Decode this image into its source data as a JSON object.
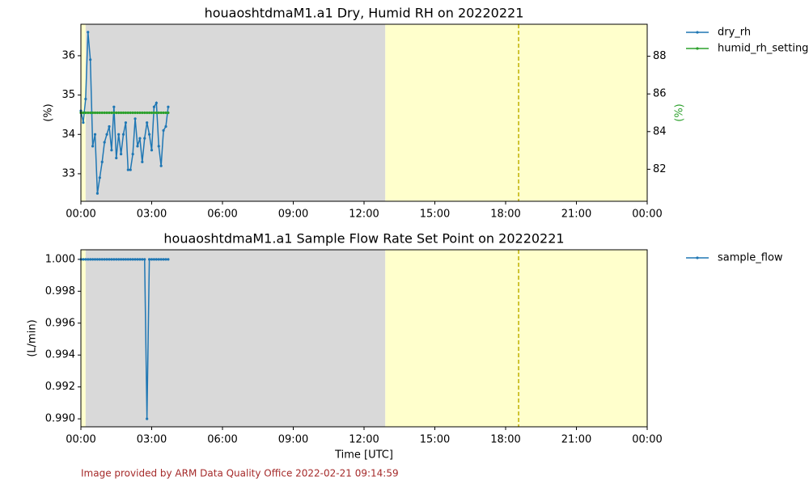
{
  "chart_data": [
    {
      "type": "line",
      "title": "houaoshtdmaM1.a1 Dry, Humid RH on 20220221",
      "x": [
        0,
        0.1,
        0.2,
        0.3,
        0.4,
        0.5,
        0.6,
        0.7,
        0.8,
        0.9,
        1.0,
        1.1,
        1.2,
        1.3,
        1.4,
        1.5,
        1.6,
        1.7,
        1.8,
        1.9,
        2.0,
        2.1,
        2.2,
        2.3,
        2.4,
        2.5,
        2.6,
        2.7,
        2.8,
        2.9,
        3.0,
        3.1,
        3.2,
        3.3,
        3.4,
        3.5,
        3.6,
        3.7
      ],
      "xlim": [
        0,
        24
      ],
      "xticks": [
        {
          "value": 0,
          "label": "00:00"
        },
        {
          "value": 3,
          "label": "03:00"
        },
        {
          "value": 6,
          "label": "06:00"
        },
        {
          "value": 9,
          "label": "09:00"
        },
        {
          "value": 12,
          "label": "12:00"
        },
        {
          "value": 15,
          "label": "15:00"
        },
        {
          "value": 18,
          "label": "18:00"
        },
        {
          "value": 21,
          "label": "21:00"
        },
        {
          "value": 24,
          "label": "00:00"
        }
      ],
      "ylabel": "(%)",
      "ylim": [
        32.3,
        36.8
      ],
      "yticks": [
        33,
        34,
        35,
        36
      ],
      "y2label": "(%)",
      "y2label_color": "#2ca02c",
      "y2lim": [
        80.3,
        89.7
      ],
      "y2ticks": [
        82,
        84,
        86,
        88
      ],
      "series": [
        {
          "name": "dry_rh",
          "color": "#1f77b4",
          "values": [
            34.6,
            34.3,
            34.9,
            36.6,
            35.9,
            33.7,
            34.0,
            32.5,
            32.9,
            33.3,
            33.8,
            34.0,
            34.2,
            33.6,
            34.7,
            33.4,
            34.0,
            33.5,
            34.0,
            34.3,
            33.1,
            33.1,
            33.5,
            34.4,
            33.7,
            33.9,
            33.3,
            33.9,
            34.3,
            34.0,
            33.6,
            34.7,
            34.8,
            33.7,
            33.2,
            34.1,
            34.2,
            34.7
          ]
        },
        {
          "name": "humid_rh_setting",
          "color": "#2ca02c",
          "axis": "y2",
          "values": [
            85,
            85,
            85,
            85,
            85,
            85,
            85,
            85,
            85,
            85,
            85,
            85,
            85,
            85,
            85,
            85,
            85,
            85,
            85,
            85,
            85,
            85,
            85,
            85,
            85,
            85,
            85,
            85,
            85,
            85,
            85,
            85,
            85,
            85,
            85,
            85,
            85,
            85
          ]
        }
      ],
      "shaded_regions": [
        {
          "start": 0,
          "end": 0.2,
          "color": "#ffffcc"
        },
        {
          "start": 0.2,
          "end": 12.9,
          "color": "#d9d9d9"
        },
        {
          "start": 12.9,
          "end": 24,
          "color": "#ffffcc"
        }
      ],
      "vlines": [
        {
          "x": 18.55,
          "color": "#bfb000"
        }
      ],
      "legend": "outside-right"
    },
    {
      "type": "line",
      "title": "houaoshtdmaM1.a1 Sample Flow Rate Set Point on 20220221",
      "x": [
        0,
        0.1,
        0.2,
        0.3,
        0.4,
        0.5,
        0.6,
        0.7,
        0.8,
        0.9,
        1.0,
        1.1,
        1.2,
        1.3,
        1.4,
        1.5,
        1.6,
        1.7,
        1.8,
        1.9,
        2.0,
        2.1,
        2.2,
        2.3,
        2.4,
        2.5,
        2.6,
        2.7,
        2.8,
        2.9,
        3.0,
        3.1,
        3.2,
        3.3,
        3.4,
        3.5,
        3.6,
        3.7
      ],
      "xlim": [
        0,
        24
      ],
      "xticks": [
        {
          "value": 0,
          "label": "00:00"
        },
        {
          "value": 3,
          "label": "03:00"
        },
        {
          "value": 6,
          "label": "06:00"
        },
        {
          "value": 9,
          "label": "09:00"
        },
        {
          "value": 12,
          "label": "12:00"
        },
        {
          "value": 15,
          "label": "15:00"
        },
        {
          "value": 18,
          "label": "18:00"
        },
        {
          "value": 21,
          "label": "21:00"
        },
        {
          "value": 24,
          "label": "00:00"
        }
      ],
      "xlabel": "Time [UTC]",
      "ylabel": "(L/min)",
      "ylim": [
        0.9895,
        1.0006
      ],
      "yticks": [
        {
          "value": 0.99,
          "label": "0.990"
        },
        {
          "value": 0.992,
          "label": "0.992"
        },
        {
          "value": 0.994,
          "label": "0.994"
        },
        {
          "value": 0.996,
          "label": "0.996"
        },
        {
          "value": 0.998,
          "label": "0.998"
        },
        {
          "value": 1.0,
          "label": "1.000"
        }
      ],
      "series": [
        {
          "name": "sample_flow",
          "color": "#1f77b4",
          "values": [
            1,
            1,
            1,
            1,
            1,
            1,
            1,
            1,
            1,
            1,
            1,
            1,
            1,
            1,
            1,
            1,
            1,
            1,
            1,
            1,
            1,
            1,
            1,
            1,
            1,
            1,
            1,
            1,
            0.99,
            1,
            1,
            1,
            1,
            1,
            1,
            1,
            1,
            1
          ]
        }
      ],
      "shaded_regions": [
        {
          "start": 0,
          "end": 0.2,
          "color": "#ffffcc"
        },
        {
          "start": 0.2,
          "end": 12.9,
          "color": "#d9d9d9"
        },
        {
          "start": 12.9,
          "end": 24,
          "color": "#ffffcc"
        }
      ],
      "vlines": [
        {
          "x": 18.55,
          "color": "#bfb000"
        }
      ],
      "legend": "outside-right"
    }
  ],
  "footer": "Image provided by ARM Data Quality Office 2022-02-21 09:14:59"
}
